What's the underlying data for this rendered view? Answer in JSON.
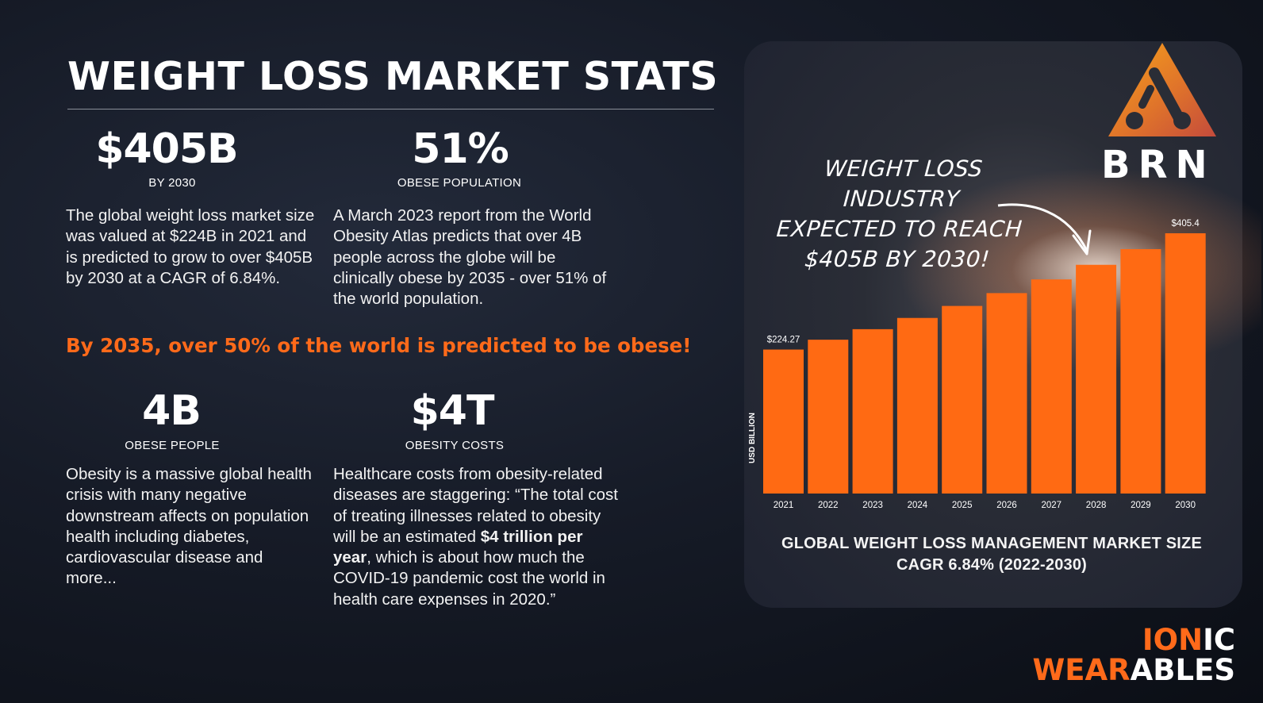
{
  "title": "WEIGHT LOSS MARKET STATS",
  "stats": [
    {
      "value": "$405B",
      "label": "BY 2030",
      "text": "The global weight loss market size was valued at $224B in 2021 and is predicted to grow to over $405B by 2030 at a CAGR of 6.84%."
    },
    {
      "value": "51%",
      "label": "OBESE POPULATION",
      "text": "A March 2023 report from the World Obesity Atlas predicts that over 4B people across the globe will be clinically obese by 2035 - over 51% of the world population."
    },
    {
      "value": "4B",
      "label": "OBESE PEOPLE",
      "text": "Obesity is a massive global health crisis with many negative downstream affects on population health including diabetes, cardiovascular disease and more..."
    },
    {
      "value": "$4T",
      "label": "OBESITY COSTS",
      "text_before": "Healthcare costs from obesity-related diseases are staggering: “The total cost of treating illnesses related to obesity will be an estimated ",
      "text_bold": "$4 trillion per year",
      "text_after": ", which is about how much the COVID-19 pandemic cost the world in health care expenses in 2020.”"
    }
  ],
  "highlight": "By 2035, over 50% of the world is predicted to be obese!",
  "annotation": [
    "WEIGHT LOSS INDUSTRY",
    "EXPECTED TO REACH",
    "$405B BY 2030!"
  ],
  "logo_text": "BRN",
  "brand": {
    "line1_orange": "ION",
    "line1_white": "IC",
    "line2_orange": "WEAR",
    "line2_white": "ABLES"
  },
  "colors": {
    "accent": "#ff6a1a",
    "bar": "#ff6a13",
    "background": "#141926"
  },
  "chart_data": {
    "type": "bar",
    "categories": [
      "2021",
      "2022",
      "2023",
      "2024",
      "2025",
      "2026",
      "2027",
      "2028",
      "2029",
      "2030"
    ],
    "values": [
      224.27,
      239.6,
      256.0,
      273.5,
      292.2,
      312.2,
      333.5,
      356.3,
      380.7,
      405.4
    ],
    "data_labels": {
      "0": "$224.27",
      "9": "$405.4"
    },
    "ylabel": "USD BILLION",
    "xlabel": "",
    "title": "GLOBAL WEIGHT LOSS MANAGEMENT MARKET SIZE",
    "subtitle": "CAGR 6.84% (2022-2030)",
    "grid": false,
    "legend": "none"
  }
}
